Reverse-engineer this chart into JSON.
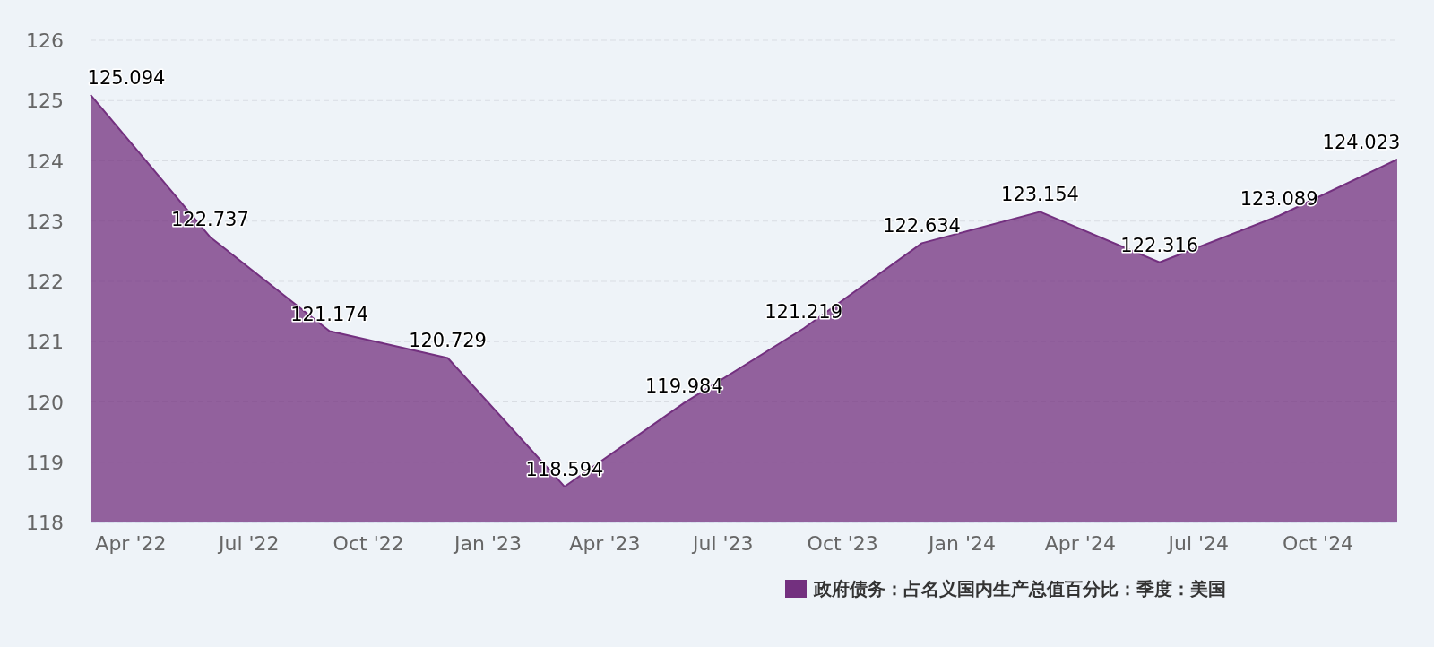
{
  "chart_data": {
    "type": "area",
    "x": [
      "2022-03",
      "2022-06",
      "2022-09",
      "2022-12",
      "2023-03",
      "2023-06",
      "2023-09",
      "2023-12",
      "2024-03",
      "2024-06",
      "2024-09",
      "2024-12"
    ],
    "series": [
      {
        "name": "政府债务：占名义国内生产总值百分比：季度：美国",
        "color": "#73307f",
        "values": [
          125.094,
          122.737,
          121.174,
          120.729,
          118.594,
          119.984,
          121.219,
          122.634,
          123.154,
          122.316,
          123.089,
          124.023
        ]
      }
    ],
    "xlim": [
      "2022-03",
      "2024-12"
    ],
    "xticks": [
      {
        "value": "2022-04",
        "label": "Apr '22"
      },
      {
        "value": "2022-07",
        "label": "Jul '22"
      },
      {
        "value": "2022-10",
        "label": "Oct '22"
      },
      {
        "value": "2023-01",
        "label": "Jan '23"
      },
      {
        "value": "2023-04",
        "label": "Apr '23"
      },
      {
        "value": "2023-07",
        "label": "Jul '23"
      },
      {
        "value": "2023-10",
        "label": "Oct '23"
      },
      {
        "value": "2024-01",
        "label": "Jan '24"
      },
      {
        "value": "2024-04",
        "label": "Apr '24"
      },
      {
        "value": "2024-07",
        "label": "Jul '24"
      },
      {
        "value": "2024-10",
        "label": "Oct '24"
      }
    ],
    "ylim": [
      118,
      126
    ],
    "yticks": [
      118,
      119,
      120,
      121,
      122,
      123,
      124,
      125,
      126
    ],
    "grid": "y",
    "data_labels": true,
    "legend": "bottom right"
  }
}
